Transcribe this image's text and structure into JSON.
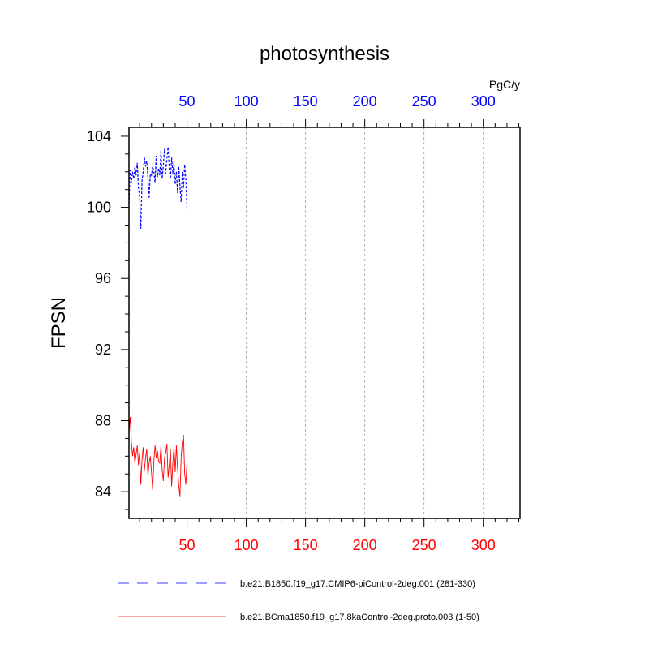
{
  "colors": {
    "top_axis": "#0000ff",
    "bottom_axis": "#ff0000",
    "series_blue": "#0000ff",
    "series_red": "#ff0000",
    "grid": "#a0a0a0"
  },
  "chart_data": {
    "type": "line",
    "title": "photosynthesis",
    "units": "PgC/y",
    "ylabel": "FPSN",
    "xlabel": "",
    "xlim": [
      1,
      331
    ],
    "ylim": [
      82.5,
      104.5
    ],
    "xticks": [
      50,
      100,
      150,
      200,
      250,
      300
    ],
    "xtick_labels": [
      "50",
      "100",
      "150",
      "200",
      "250",
      "300"
    ],
    "yticks": [
      84,
      88,
      92,
      96,
      100,
      104
    ],
    "ytick_labels": [
      "84",
      "88",
      "92",
      "96",
      "100",
      "104"
    ],
    "grid": "vertical dashed lines at major x ticks",
    "axes": "x axis labeled on both top (blue) and bottom (red)",
    "legend_placement": "below plot",
    "series": [
      {
        "name": "b.e21.B1850.f19_g17.CMIP6-piControl-2deg.001 (281-330)",
        "style": "dashed",
        "color": "#0000ff",
        "x": [
          1,
          2,
          3,
          4,
          5,
          6,
          7,
          8,
          9,
          10,
          11,
          12,
          13,
          14,
          15,
          16,
          17,
          18,
          19,
          20,
          21,
          22,
          23,
          24,
          25,
          26,
          27,
          28,
          29,
          30,
          31,
          32,
          33,
          34,
          35,
          36,
          37,
          38,
          39,
          40,
          41,
          42,
          43,
          44,
          45,
          46,
          47,
          48,
          49,
          50
        ],
        "y": [
          100.2,
          102.1,
          101.4,
          102.0,
          101.6,
          102.3,
          101.8,
          102.5,
          101.1,
          100.6,
          98.8,
          101.5,
          102.0,
          102.8,
          102.3,
          102.6,
          101.7,
          100.5,
          101.9,
          101.8,
          102.3,
          102.0,
          101.4,
          102.9,
          101.7,
          102.2,
          101.8,
          103.2,
          101.6,
          102.4,
          103.3,
          101.9,
          102.7,
          103.4,
          102.2,
          101.6,
          102.8,
          101.9,
          102.5,
          101.3,
          102.0,
          100.8,
          102.3,
          101.2,
          100.3,
          102.0,
          101.1,
          102.4,
          101.6,
          99.9
        ]
      },
      {
        "name": "b.e21.BCma1850.f19_g17.8kaControl-2deg.proto.003 (1-50)",
        "style": "solid",
        "color": "#ff0000",
        "x": [
          1,
          2,
          3,
          4,
          5,
          6,
          7,
          8,
          9,
          10,
          11,
          12,
          13,
          14,
          15,
          16,
          17,
          18,
          19,
          20,
          21,
          22,
          23,
          24,
          25,
          26,
          27,
          28,
          29,
          30,
          31,
          32,
          33,
          34,
          35,
          36,
          37,
          38,
          39,
          40,
          41,
          42,
          43,
          44,
          45,
          46,
          47,
          48,
          49,
          50
        ],
        "y": [
          87.4,
          88.2,
          86.8,
          86.0,
          86.5,
          85.6,
          86.1,
          86.6,
          85.5,
          86.2,
          84.4,
          85.8,
          86.5,
          85.2,
          85.9,
          86.4,
          84.9,
          85.6,
          86.0,
          85.1,
          84.1,
          85.7,
          86.6,
          85.9,
          86.3,
          85.7,
          85.6,
          86.6,
          85.2,
          84.6,
          85.9,
          86.2,
          86.7,
          84.8,
          85.5,
          86.4,
          84.3,
          85.6,
          86.5,
          85.1,
          86.6,
          85.3,
          84.4,
          83.7,
          85.9,
          86.8,
          87.2,
          85.0,
          84.4,
          85.7
        ]
      }
    ]
  }
}
